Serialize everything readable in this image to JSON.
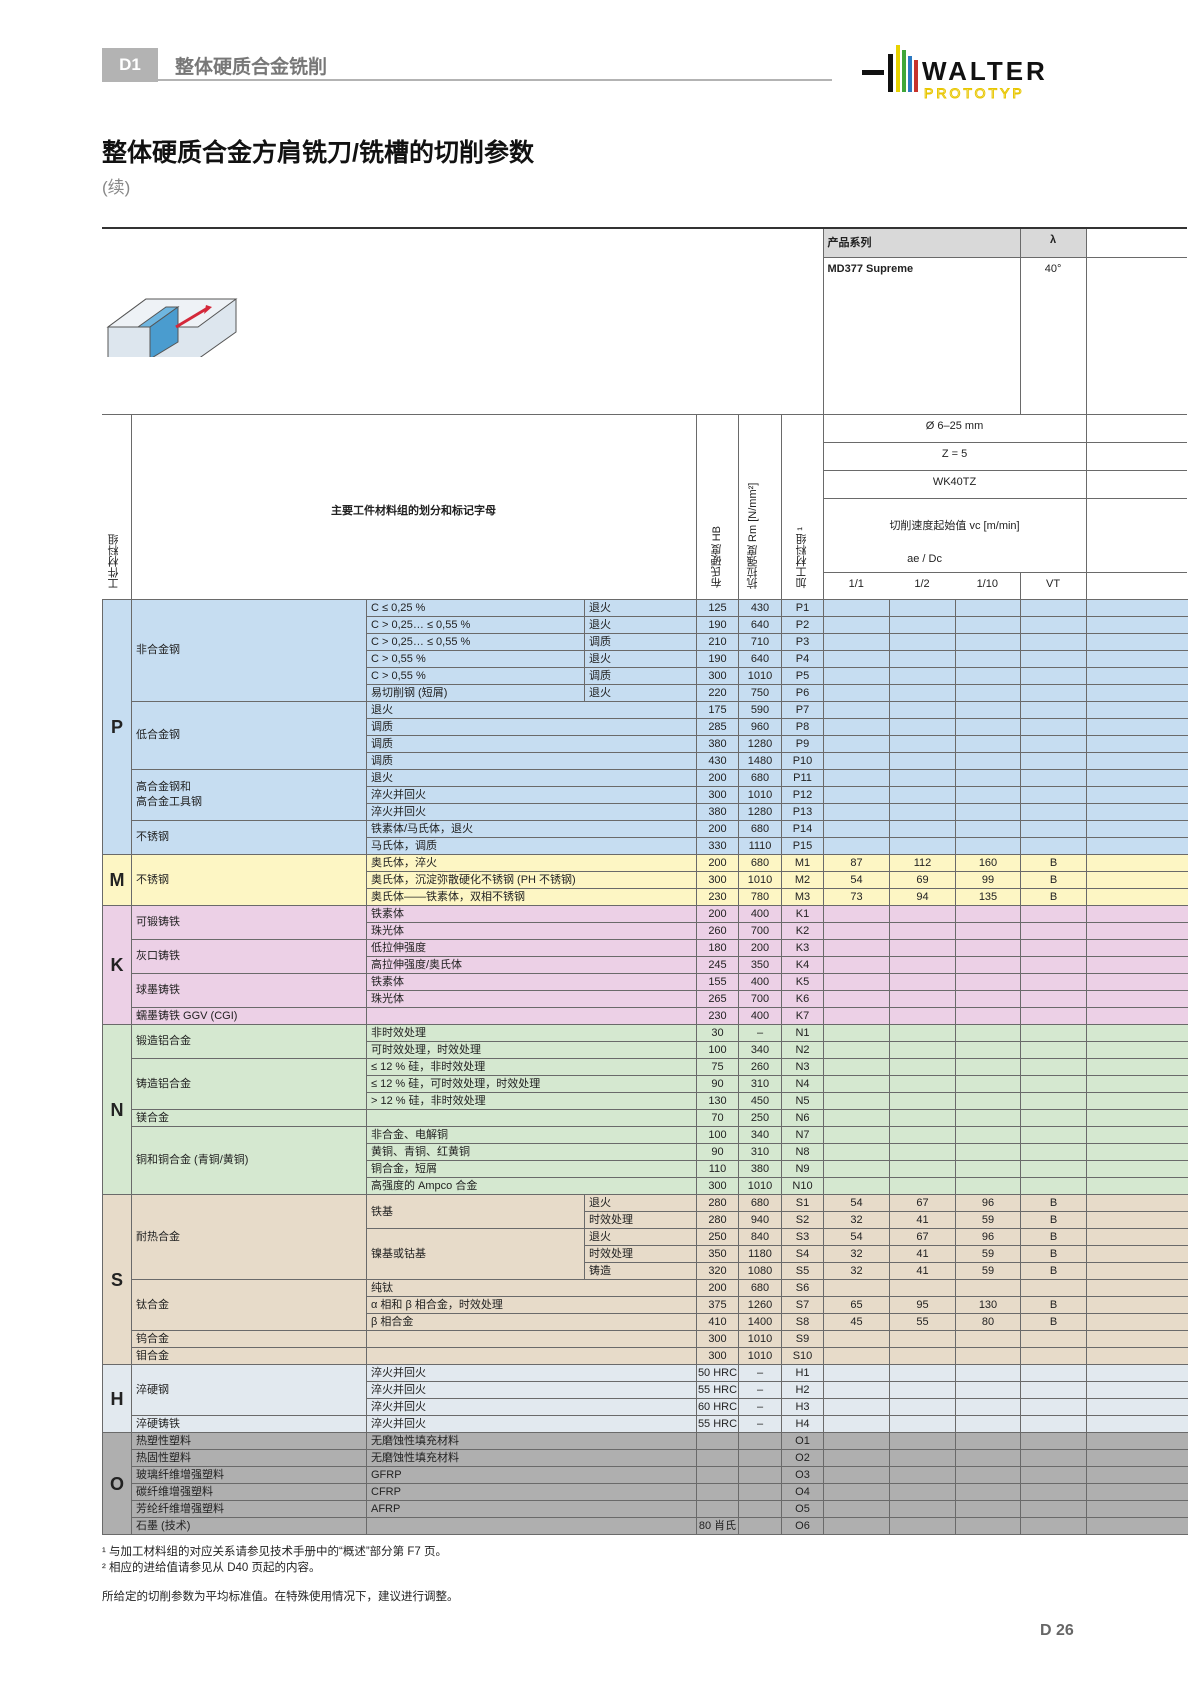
{
  "header": {
    "section": "D1",
    "chapter": "整体硬质合金铣削",
    "logo": "WALTER",
    "logo_sub": "PROTOTYP"
  },
  "title": "整体硬质合金方肩铣刀/铣槽的切削参数",
  "subtitle": "(续)",
  "product": {
    "series_label": "产品系列",
    "lambda_label": "λ",
    "series": "MD377 Supreme",
    "lambda": "40°",
    "diameter": "Ø 6–25 mm",
    "teeth": "Z = 5",
    "grade": "WK40TZ",
    "vc_label": "切削速度起始值 vc [m/min]",
    "ae_label": "ae / Dc",
    "cols": [
      "1/1",
      "1/2",
      "1/10",
      "VT"
    ]
  },
  "columns": {
    "group": "工件材料组",
    "main": "主要工件材料组的划分和标记字母",
    "hb": "布氏硬度 HB",
    "rm": "抗拉强度 Rm [N/mm²]",
    "code": "加工材料组 ¹"
  },
  "table": {
    "groups": [
      {
        "letter": "P",
        "color": "#c6ddf1",
        "materials": [
          {
            "name": "非合金钢",
            "rows": [
              {
                "desc": "C ≤ 0,25 %",
                "treat": "退火",
                "hb": 125,
                "rm": 430,
                "code": "P1"
              },
              {
                "desc": "C > 0,25… ≤ 0,55 %",
                "treat": "退火",
                "hb": 190,
                "rm": 640,
                "code": "P2"
              },
              {
                "desc": "C > 0,25… ≤ 0,55 %",
                "treat": "调质",
                "hb": 210,
                "rm": 710,
                "code": "P3"
              },
              {
                "desc": "C > 0,55 %",
                "treat": "退火",
                "hb": 190,
                "rm": 640,
                "code": "P4"
              },
              {
                "desc": "C > 0,55 %",
                "treat": "调质",
                "hb": 300,
                "rm": 1010,
                "code": "P5"
              },
              {
                "desc": "易切削钢 (短屑)",
                "treat": "退火",
                "hb": 220,
                "rm": 750,
                "code": "P6"
              }
            ]
          },
          {
            "name": "低合金钢",
            "rows": [
              {
                "desc": "退火",
                "hb": 175,
                "rm": 590,
                "code": "P7"
              },
              {
                "desc": "调质",
                "hb": 285,
                "rm": 960,
                "code": "P8"
              },
              {
                "desc": "调质",
                "hb": 380,
                "rm": 1280,
                "code": "P9"
              },
              {
                "desc": "调质",
                "hb": 430,
                "rm": 1480,
                "code": "P10"
              }
            ]
          },
          {
            "name": "高合金钢和\n高合金工具钢",
            "rows": [
              {
                "desc": "退火",
                "hb": 200,
                "rm": 680,
                "code": "P11"
              },
              {
                "desc": "淬火并回火",
                "hb": 300,
                "rm": 1010,
                "code": "P12"
              },
              {
                "desc": "淬火并回火",
                "hb": 380,
                "rm": 1280,
                "code": "P13"
              }
            ]
          },
          {
            "name": "不锈钢",
            "rows": [
              {
                "desc": "铁素体/马氏体，退火",
                "hb": 200,
                "rm": 680,
                "code": "P14"
              },
              {
                "desc": "马氏体，调质",
                "hb": 330,
                "rm": 1110,
                "code": "P15"
              }
            ]
          }
        ]
      },
      {
        "letter": "M",
        "color": "#fdf6c4",
        "materials": [
          {
            "name": "不锈钢",
            "rows": [
              {
                "desc": "奥氏体，淬火",
                "hb": 200,
                "rm": 680,
                "code": "M1",
                "vc": [
                  87,
                  112,
                  160,
                  "B"
                ]
              },
              {
                "desc": "奥氏体，沉淀弥散硬化不锈钢 (PH 不锈钢)",
                "hb": 300,
                "rm": 1010,
                "code": "M2",
                "vc": [
                  54,
                  69,
                  99,
                  "B"
                ]
              },
              {
                "desc": "奥氏体——铁素体，双相不锈钢",
                "hb": 230,
                "rm": 780,
                "code": "M3",
                "vc": [
                  73,
                  94,
                  135,
                  "B"
                ]
              }
            ]
          }
        ]
      },
      {
        "letter": "K",
        "color": "#ecd0e6",
        "materials": [
          {
            "name": "可锻铸铁",
            "rows": [
              {
                "desc": "铁素体",
                "hb": 200,
                "rm": 400,
                "code": "K1"
              },
              {
                "desc": "珠光体",
                "hb": 260,
                "rm": 700,
                "code": "K2"
              }
            ]
          },
          {
            "name": "灰口铸铁",
            "rows": [
              {
                "desc": "低拉伸强度",
                "hb": 180,
                "rm": 200,
                "code": "K3"
              },
              {
                "desc": "高拉伸强度/奥氏体",
                "hb": 245,
                "rm": 350,
                "code": "K4"
              }
            ]
          },
          {
            "name": "球墨铸铁",
            "rows": [
              {
                "desc": "铁素体",
                "hb": 155,
                "rm": 400,
                "code": "K5"
              },
              {
                "desc": "珠光体",
                "hb": 265,
                "rm": 700,
                "code": "K6"
              }
            ]
          },
          {
            "name": "蠕墨铸铁 GGV (CGI)",
            "rows": [
              {
                "hb": 230,
                "rm": 400,
                "code": "K7"
              }
            ]
          }
        ]
      },
      {
        "letter": "N",
        "color": "#d5e8d0",
        "materials": [
          {
            "name": "锻造铝合金",
            "rows": [
              {
                "desc": "非时效处理",
                "hb": 30,
                "rm": "–",
                "code": "N1"
              },
              {
                "desc": "可时效处理，时效处理",
                "hb": 100,
                "rm": 340,
                "code": "N2"
              }
            ]
          },
          {
            "name": "铸造铝合金",
            "rows": [
              {
                "desc": "≤ 12 % 硅，非时效处理",
                "hb": 75,
                "rm": 260,
                "code": "N3"
              },
              {
                "desc": "≤ 12 % 硅，可时效处理，时效处理",
                "hb": 90,
                "rm": 310,
                "code": "N4"
              },
              {
                "desc": "> 12 % 硅，非时效处理",
                "hb": 130,
                "rm": 450,
                "code": "N5"
              }
            ]
          },
          {
            "name": "镁合金",
            "rows": [
              {
                "hb": 70,
                "rm": 250,
                "code": "N6"
              }
            ]
          },
          {
            "name": "铜和铜合金 (青铜/黄铜)",
            "rows": [
              {
                "desc": "非合金、电解铜",
                "hb": 100,
                "rm": 340,
                "code": "N7"
              },
              {
                "desc": "黄铜、青铜、红黄铜",
                "hb": 90,
                "rm": 310,
                "code": "N8"
              },
              {
                "desc": "铜合金，短屑",
                "hb": 110,
                "rm": 380,
                "code": "N9"
              },
              {
                "desc": "高强度的 Ampco 合金",
                "hb": 300,
                "rm": 1010,
                "code": "N10"
              }
            ]
          }
        ]
      },
      {
        "letter": "S",
        "color": "#e7dbc9",
        "materials": [
          {
            "name": "耐热合金",
            "subs": [
              {
                "name": "铁基",
                "rows": [
                  {
                    "treat": "退火",
                    "hb": 280,
                    "rm": 680,
                    "code": "S1",
                    "vc": [
                      54,
                      67,
                      96,
                      "B"
                    ]
                  },
                  {
                    "treat": "时效处理",
                    "hb": 280,
                    "rm": 940,
                    "code": "S2",
                    "vc": [
                      32,
                      41,
                      59,
                      "B"
                    ]
                  }
                ]
              },
              {
                "name": "镍基或钴基",
                "rows": [
                  {
                    "treat": "退火",
                    "hb": 250,
                    "rm": 840,
                    "code": "S3",
                    "vc": [
                      54,
                      67,
                      96,
                      "B"
                    ]
                  },
                  {
                    "treat": "时效处理",
                    "hb": 350,
                    "rm": 1180,
                    "code": "S4",
                    "vc": [
                      32,
                      41,
                      59,
                      "B"
                    ]
                  },
                  {
                    "treat": "铸造",
                    "hb": 320,
                    "rm": 1080,
                    "code": "S5",
                    "vc": [
                      32,
                      41,
                      59,
                      "B"
                    ]
                  }
                ]
              }
            ]
          },
          {
            "name": "钛合金",
            "rows": [
              {
                "desc": "纯钛",
                "hb": 200,
                "rm": 680,
                "code": "S6"
              },
              {
                "desc": "α 相和 β 相合金，时效处理",
                "hb": 375,
                "rm": 1260,
                "code": "S7",
                "vc": [
                  65,
                  95,
                  130,
                  "B"
                ]
              },
              {
                "desc": "β 相合金",
                "hb": 410,
                "rm": 1400,
                "code": "S8",
                "vc": [
                  45,
                  55,
                  80,
                  "B"
                ]
              }
            ]
          },
          {
            "name": "钨合金",
            "rows": [
              {
                "hb": 300,
                "rm": 1010,
                "code": "S9"
              }
            ]
          },
          {
            "name": "钼合金",
            "rows": [
              {
                "hb": 300,
                "rm": 1010,
                "code": "S10"
              }
            ]
          }
        ]
      },
      {
        "letter": "H",
        "color": "#e2e9ef",
        "materials": [
          {
            "name": "淬硬钢",
            "rows": [
              {
                "desc": "淬火并回火",
                "hb": "50 HRC",
                "rm": "–",
                "code": "H1"
              },
              {
                "desc": "淬火并回火",
                "hb": "55 HRC",
                "rm": "–",
                "code": "H2"
              },
              {
                "desc": "淬火并回火",
                "hb": "60 HRC",
                "rm": "–",
                "code": "H3"
              }
            ]
          },
          {
            "name": "淬硬铸铁",
            "rows": [
              {
                "desc": "淬火并回火",
                "hb": "55 HRC",
                "rm": "–",
                "code": "H4"
              }
            ]
          }
        ]
      },
      {
        "letter": "O",
        "color": "#afafaf",
        "materials": [
          {
            "name": "热塑性塑料",
            "rows": [
              {
                "desc": "无磨蚀性填充材料",
                "code": "O1"
              }
            ]
          },
          {
            "name": "热固性塑料",
            "rows": [
              {
                "desc": "无磨蚀性填充材料",
                "code": "O2"
              }
            ]
          },
          {
            "name": "玻璃纤维增强塑料",
            "rows": [
              {
                "desc": "GFRP",
                "code": "O3"
              }
            ]
          },
          {
            "name": "碳纤维增强塑料",
            "rows": [
              {
                "desc": "CFRP",
                "code": "O4"
              }
            ]
          },
          {
            "name": "芳纶纤维增强塑料",
            "rows": [
              {
                "desc": "AFRP",
                "code": "O5"
              }
            ]
          },
          {
            "name": "石墨 (技术)",
            "rows": [
              {
                "hb": "80 肖氏",
                "code": "O6"
              }
            ]
          }
        ]
      }
    ]
  },
  "footnotes": [
    "¹ 与加工材料组的对应关系请参见技术手册中的“概述”部分第 F7 页。",
    "² 相应的进给值请参见从 D40 页起的内容。"
  ],
  "note": "所给定的切削参数为平均标准值。在特殊使用情况下，建议进行调整。",
  "page_number": "D 26"
}
